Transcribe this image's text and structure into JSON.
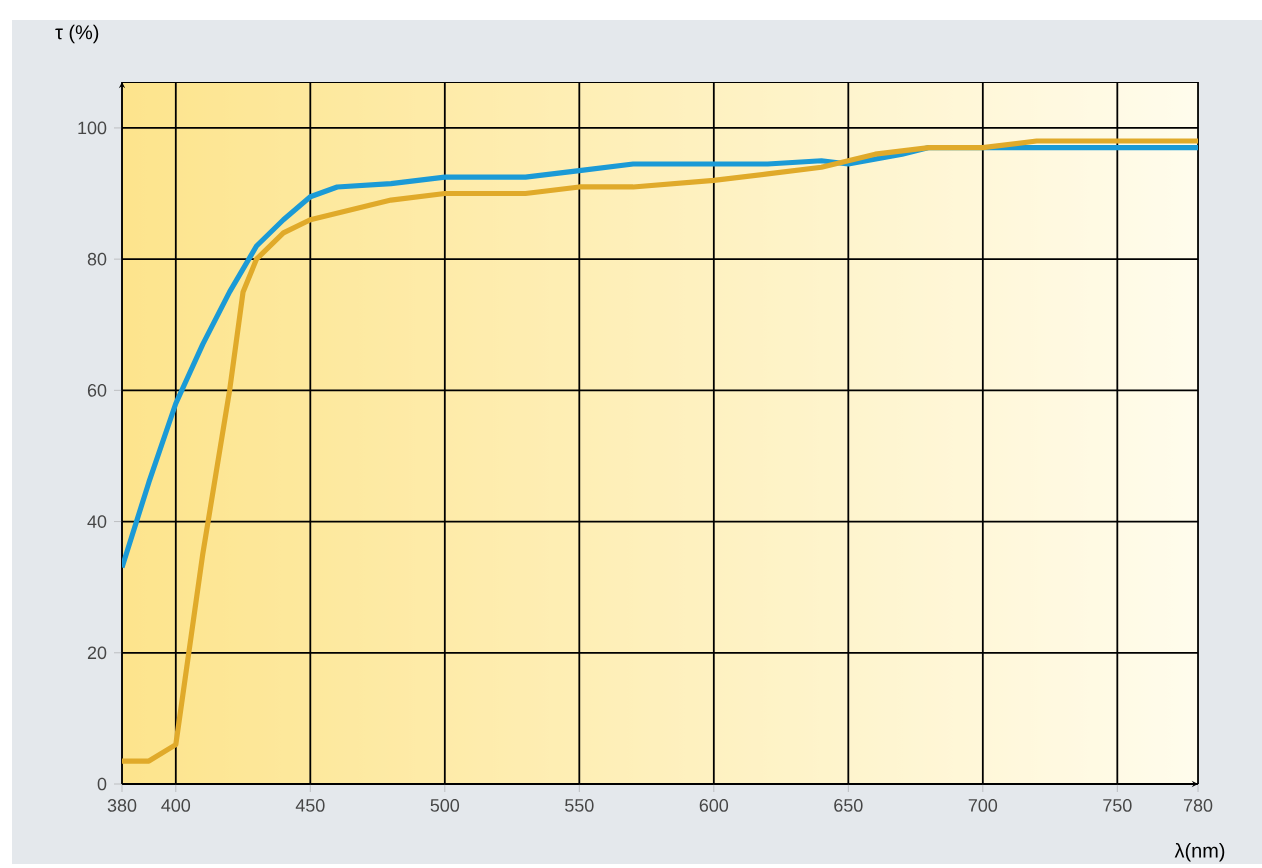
{
  "chart_data": {
    "type": "line",
    "xlabel": "λ(nm)",
    "ylabel": "τ (%)",
    "xlim": [
      380,
      780
    ],
    "ylim": [
      0,
      107
    ],
    "xticks": [
      380,
      400,
      450,
      500,
      550,
      600,
      650,
      700,
      750,
      780
    ],
    "yticks": [
      0,
      20,
      40,
      60,
      80,
      100
    ],
    "grid": true,
    "series": [
      {
        "color": "#1b9ad6",
        "x": [
          380,
          390,
          400,
          410,
          420,
          430,
          440,
          450,
          460,
          480,
          500,
          530,
          550,
          570,
          600,
          620,
          640,
          650,
          670,
          680,
          700,
          780
        ],
        "values": [
          33,
          46,
          58,
          67,
          75,
          82,
          86,
          89.5,
          91,
          91.5,
          92.5,
          92.5,
          93.5,
          94.5,
          94.5,
          94.5,
          95,
          94.5,
          96,
          97,
          97,
          97
        ]
      },
      {
        "color": "#e0aa2a",
        "x": [
          380,
          390,
          400,
          410,
          420,
          425,
          430,
          440,
          450,
          460,
          480,
          500,
          530,
          550,
          570,
          600,
          620,
          640,
          650,
          660,
          680,
          700,
          720,
          780
        ],
        "values": [
          3.5,
          3.5,
          6,
          35,
          60,
          75,
          80,
          84,
          86,
          87,
          89,
          90,
          90,
          91,
          91,
          92,
          93,
          94,
          95,
          96,
          97,
          97,
          98,
          98
        ]
      }
    ]
  }
}
